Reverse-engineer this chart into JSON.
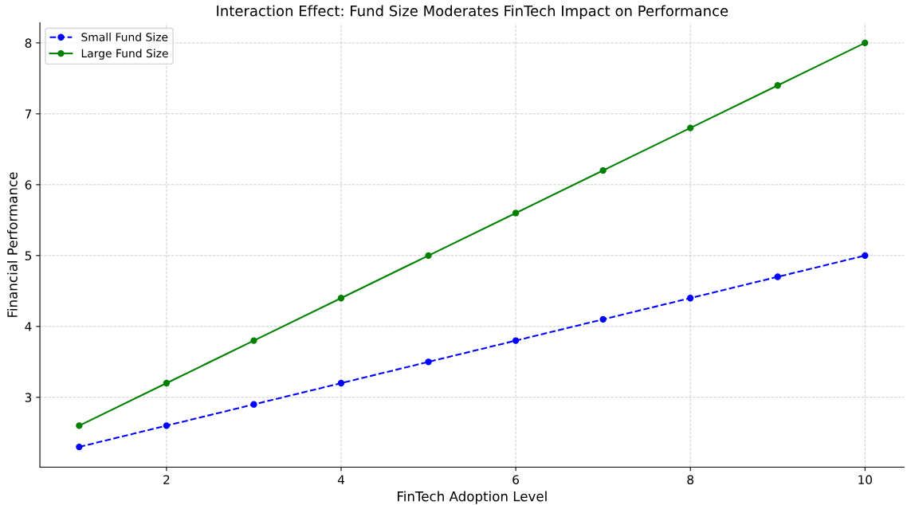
{
  "chart_data": {
    "type": "line",
    "title": "Interaction Effect: Fund Size Moderates FinTech Impact on Performance",
    "xlabel": "FinTech Adoption Level",
    "ylabel": "Financial Performance",
    "x": [
      1,
      2,
      3,
      4,
      5,
      6,
      7,
      8,
      9,
      10
    ],
    "series": [
      {
        "name": "Small Fund Size",
        "color": "#0000ff",
        "line_style": "dashed",
        "marker": "circle",
        "values": [
          2.3,
          2.6,
          2.9,
          3.2,
          3.5,
          3.8,
          4.1,
          4.4,
          4.7,
          5.0
        ]
      },
      {
        "name": "Large Fund Size",
        "color": "#008000",
        "line_style": "solid",
        "marker": "circle",
        "values": [
          2.6,
          3.2,
          3.8,
          4.4,
          5.0,
          5.6,
          6.2,
          6.8,
          7.4,
          8.0
        ]
      }
    ],
    "xlim": [
      0.55,
      10.45
    ],
    "xticks": [
      2,
      4,
      6,
      8,
      10
    ],
    "ylim": [
      2.015,
      8.285
    ],
    "yticks": [
      3,
      4,
      5,
      6,
      7,
      8
    ],
    "grid": true,
    "legend": "top left"
  }
}
